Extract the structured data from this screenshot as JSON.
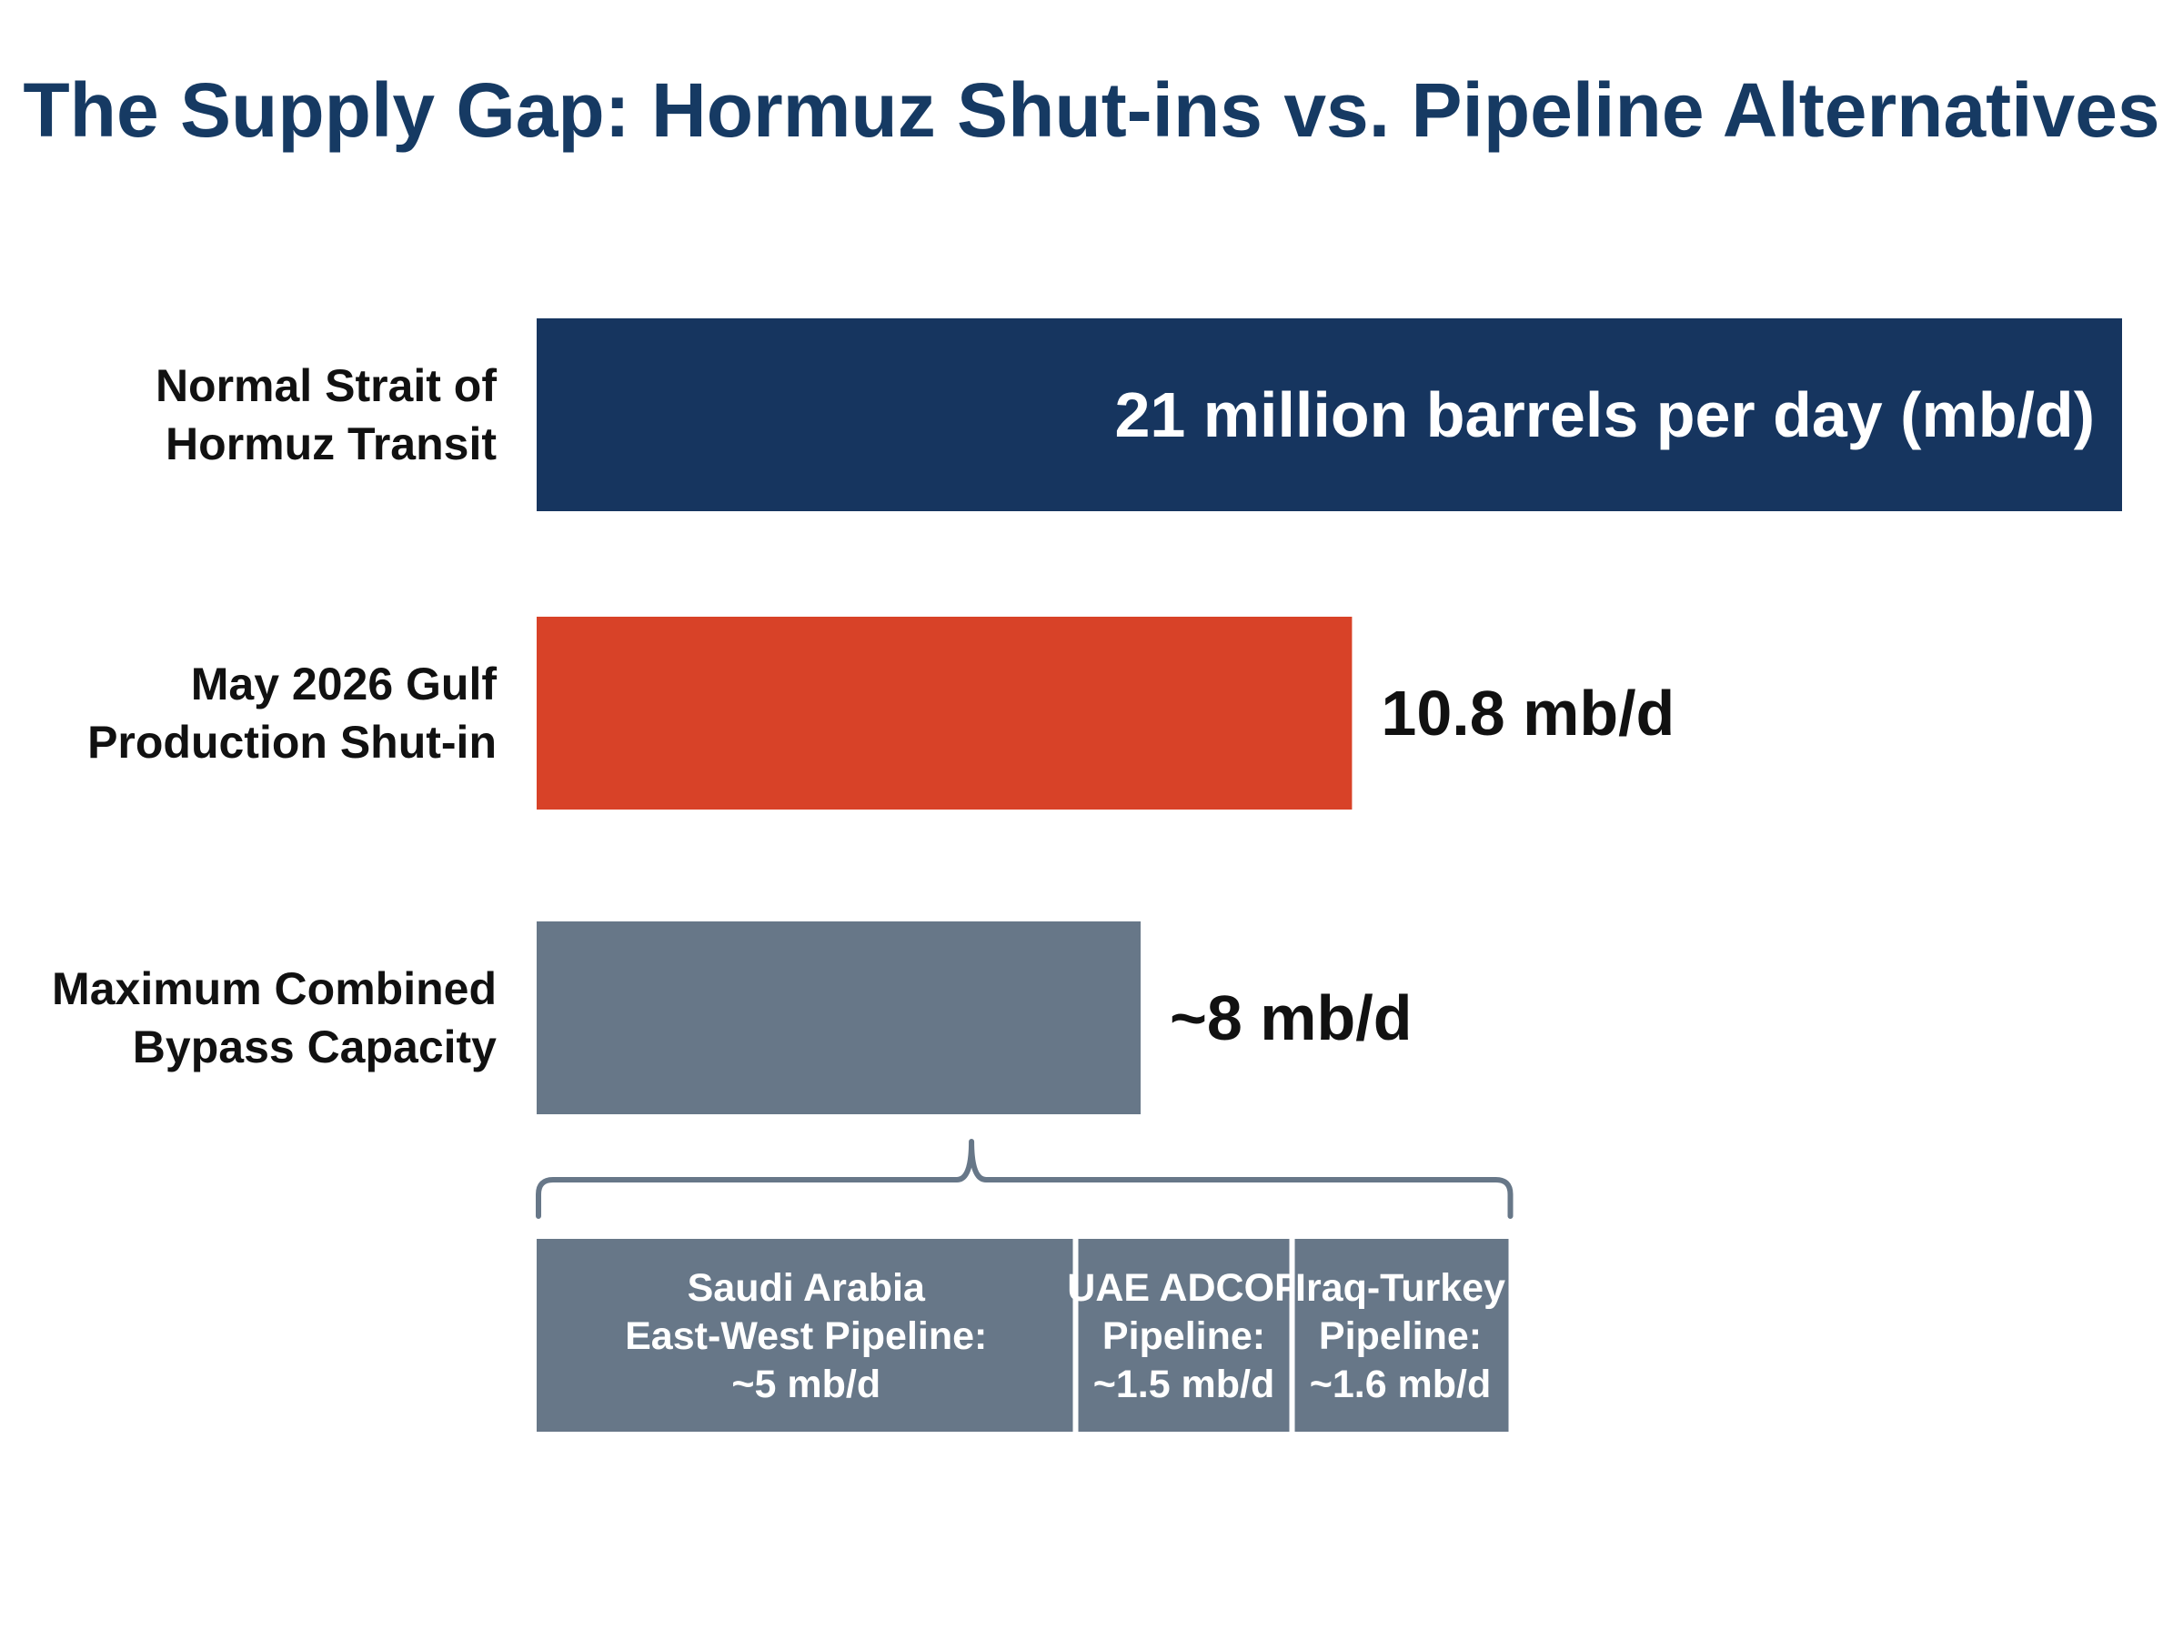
{
  "chart_data": {
    "type": "bar",
    "orientation": "horizontal",
    "title": "The Supply Gap: Hormuz Shut-ins vs. Pipeline Alternatives",
    "unit": "mb/d",
    "xlim": [
      0,
      21
    ],
    "grid": false,
    "bars": [
      {
        "category_lines": [
          "Normal Strait of",
          "Hormuz Transit"
        ],
        "value": 21,
        "label": "21 million barrels per day (mb/d)",
        "label_position": "inside-right",
        "color": "#16355f"
      },
      {
        "category_lines": [
          "May 2026 Gulf",
          "Production Shut-in"
        ],
        "value": 10.8,
        "label": "10.8 mb/d",
        "label_position": "outside-right",
        "color": "#d84228"
      },
      {
        "category_lines": [
          "Maximum Combined",
          "Bypass Capacity"
        ],
        "value": 8,
        "label": "~8 mb/d",
        "label_position": "outside-right",
        "color": "#677788"
      }
    ],
    "bypass_components": [
      {
        "name_lines": [
          "Saudi Arabia",
          "East-West Pipeline:",
          "~5 mb/d"
        ],
        "value": 5,
        "color": "#677788"
      },
      {
        "name_lines": [
          "UAE ADCOP",
          "Pipeline:",
          "~1.5 mb/d"
        ],
        "value": 1.5,
        "color": "#677788"
      },
      {
        "name_lines": [
          "Iraq-Turkey",
          "Pipeline:",
          "~1.6 mb/d"
        ],
        "value": 1.6,
        "color": "#677788"
      }
    ]
  },
  "colors": {
    "title": "#163a63",
    "bracket": "#677788",
    "separator": "#ffffff"
  }
}
